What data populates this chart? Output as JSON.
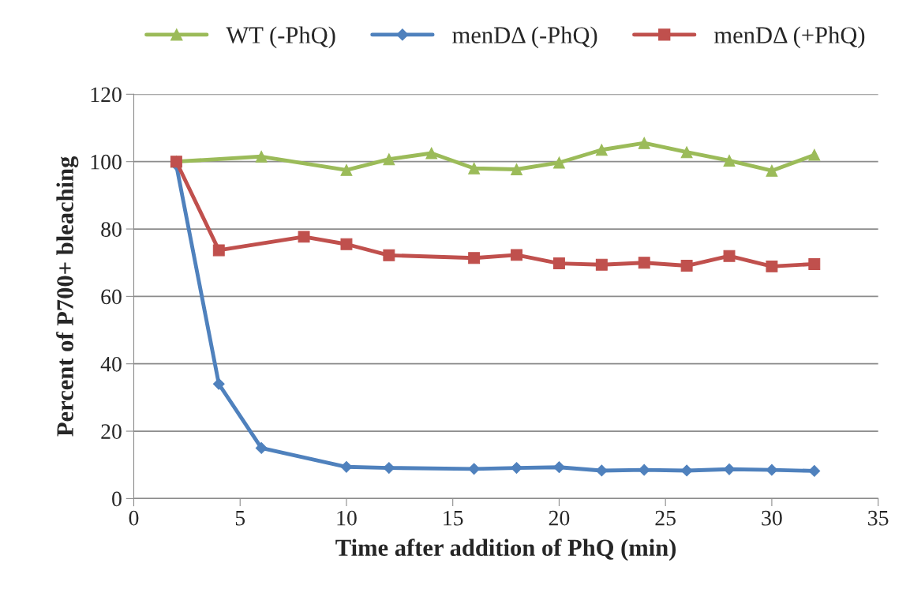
{
  "chart_data": {
    "type": "line",
    "xlabel": "Time after addition of PhQ (min)",
    "ylabel": "Percent of P700+ bleaching",
    "xlim": [
      0,
      35
    ],
    "xticks": [
      0,
      5,
      10,
      15,
      20,
      25,
      30,
      35
    ],
    "ylim": [
      0,
      120
    ],
    "yticks": [
      0,
      20,
      40,
      60,
      80,
      100,
      120
    ],
    "grid": "y",
    "legend": "top",
    "line_style": "solid",
    "series": [
      {
        "name": "WT (-PhQ)",
        "color": "#9bbb59",
        "marker": "triangle",
        "x": [
          2,
          6,
          10,
          12,
          14,
          16,
          18,
          20,
          22,
          24,
          26,
          28,
          30,
          32
        ],
        "values": [
          100,
          101.5,
          97.5,
          100.7,
          102.5,
          98,
          97.7,
          99.7,
          103.5,
          105.5,
          102.8,
          100.3,
          97.3,
          102
        ]
      },
      {
        "name": "menDΔ (-PhQ)",
        "color": "#4f81bd",
        "marker": "diamond",
        "x": [
          2,
          4,
          6,
          10,
          12,
          16,
          18,
          20,
          22,
          24,
          26,
          28,
          30,
          32
        ],
        "values": [
          99,
          34,
          15,
          9.4,
          9.1,
          8.8,
          9.1,
          9.3,
          8.3,
          8.5,
          8.3,
          8.7,
          8.5,
          8.2
        ]
      },
      {
        "name": "menDΔ (+PhQ)",
        "color": "#c0504d",
        "marker": "square",
        "x": [
          2,
          4,
          8,
          10,
          12,
          16,
          18,
          20,
          22,
          24,
          26,
          28,
          30,
          32
        ],
        "values": [
          100,
          73.7,
          77.7,
          75.5,
          72.2,
          71.4,
          72.3,
          69.8,
          69.4,
          70,
          69.1,
          72,
          68.9,
          69.6
        ]
      }
    ]
  }
}
